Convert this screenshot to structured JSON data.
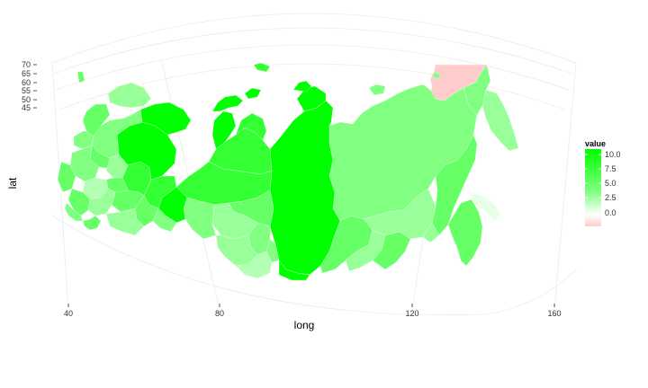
{
  "map": {
    "x_axis": {
      "title": "long",
      "ticks": [
        "40",
        "80",
        "120",
        "160"
      ]
    },
    "y_axis": {
      "title": "lat",
      "ticks": [
        "70",
        "65",
        "60",
        "55",
        "50",
        "45"
      ]
    },
    "legend": {
      "title": "value",
      "ticks": [
        "10.0",
        "7.5",
        "5.0",
        "2.5",
        "0.0"
      ],
      "colors": {
        "high": "#00ff00",
        "mid": "#ffffff",
        "low": "#ffcccc"
      }
    },
    "colors": {
      "v10": "#00ff00",
      "v8": "#33ff33",
      "v6": "#66ff66",
      "v5": "#80ff80",
      "v4": "#99ff99",
      "v3": "#b3ffb3",
      "v1": "#e6ffe6",
      "neg": "#ffcccc",
      "graticule": "#ebebeb"
    }
  }
}
